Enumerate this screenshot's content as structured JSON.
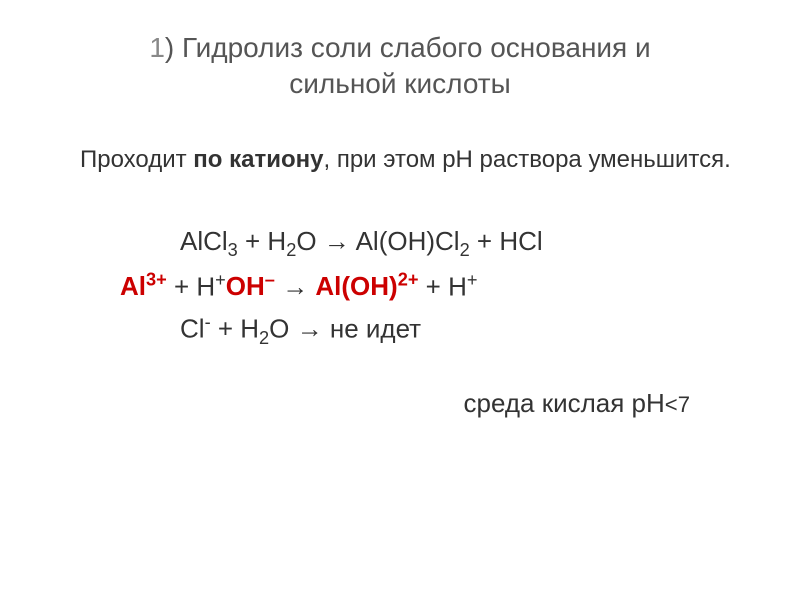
{
  "title": {
    "num": "1",
    "text_part1": ") Гидролиз соли слабого основания и",
    "text_part2": "сильной кислоты"
  },
  "subtitle": {
    "part1": "Проходит ",
    "bold": "по катиону",
    "part2": ", при этом рН раствора уменьшится."
  },
  "equations": {
    "line1": {
      "lhs": "AlCl",
      "sub1": "3",
      "mid1": " + H",
      "sub2": "2",
      "mid2": "O → Al(OH)Cl",
      "sub3": "2",
      "end": " + HCl"
    },
    "line2": {
      "al": "Al",
      "al_charge": "3+",
      "plus1": " + H",
      "plus_sup": "+",
      "oh": "OH",
      "oh_sup": "–",
      "arrow": " → ",
      "aloh": "Al(OH)",
      "aloh_sup": "2+",
      "plus2": " + H",
      "h_sup": "+"
    },
    "line3": {
      "cl": "Cl",
      "cl_sup": "-",
      "mid": " + H",
      "sub": "2",
      "end": "O → не идет"
    }
  },
  "conclusion": {
    "text": "среда кислая рН",
    "lt": "<7"
  },
  "colors": {
    "title_color": "#555555",
    "title_num_color": "#888888",
    "text_color": "#333333",
    "red_color": "#cc0000",
    "background": "#ffffff"
  },
  "typography": {
    "title_fontsize": 28,
    "subtitle_fontsize": 24,
    "equation_fontsize": 26,
    "conclusion_fontsize": 26
  }
}
